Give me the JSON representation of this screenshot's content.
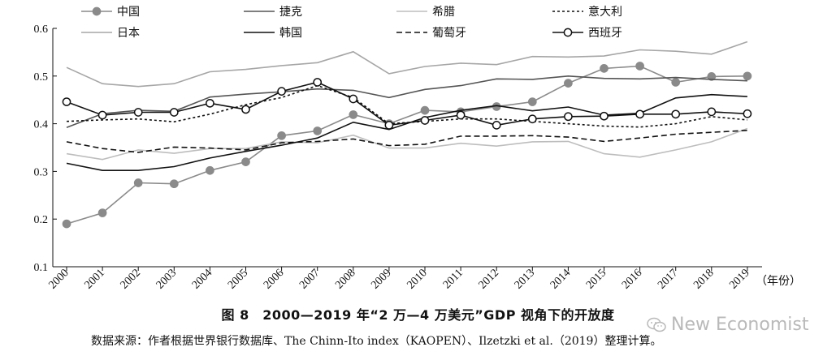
{
  "chart_data": {
    "type": "line",
    "ylim": [
      0.1,
      0.6
    ],
    "yticks": [
      "0.1",
      "0.2",
      "0.3",
      "0.4",
      "0.5",
      "0.6"
    ],
    "categories": [
      "2000",
      "2001",
      "2002",
      "2003",
      "2004",
      "2005",
      "2006",
      "2007",
      "2008",
      "2009",
      "2010",
      "2011",
      "2012",
      "2013",
      "2014",
      "2015",
      "2016",
      "2017",
      "2018",
      "2019"
    ],
    "x_unit": "（年份）",
    "title": "图 8　2000—2019 年“2 万—4 万美元”GDP 视角下的开放度",
    "legend_position": "top",
    "series": [
      {
        "name": "中国",
        "color": "#8a8a8a",
        "dash": "solid",
        "marker": "filled",
        "values": [
          0.19,
          0.213,
          0.276,
          0.274,
          0.302,
          0.32,
          0.375,
          0.385,
          0.419,
          0.4,
          0.428,
          0.425,
          0.436,
          0.446,
          0.485,
          0.516,
          0.521,
          0.487,
          0.499,
          0.5
        ]
      },
      {
        "name": "捷克",
        "color": "#555555",
        "dash": "solid",
        "marker": "none",
        "values": [
          0.392,
          0.421,
          0.428,
          0.426,
          0.456,
          0.462,
          0.467,
          0.473,
          0.47,
          0.455,
          0.472,
          0.48,
          0.494,
          0.493,
          0.5,
          0.495,
          0.494,
          0.497,
          0.493,
          0.49
        ]
      },
      {
        "name": "希腊",
        "color": "#bdbdbd",
        "dash": "solid",
        "marker": "none",
        "values": [
          0.337,
          0.325,
          0.345,
          0.338,
          0.348,
          0.348,
          0.362,
          0.36,
          0.376,
          0.349,
          0.349,
          0.359,
          0.353,
          0.362,
          0.363,
          0.337,
          0.33,
          0.345,
          0.362,
          0.39
        ]
      },
      {
        "name": "意大利",
        "color": "#111111",
        "dash": "dotted",
        "marker": "none",
        "values": [
          0.405,
          0.408,
          0.41,
          0.404,
          0.42,
          0.44,
          0.455,
          0.48,
          0.455,
          0.4,
          0.405,
          0.41,
          0.41,
          0.405,
          0.4,
          0.395,
          0.393,
          0.4,
          0.415,
          0.408
        ]
      },
      {
        "name": "日本",
        "color": "#a6a6a6",
        "dash": "solid",
        "marker": "none",
        "values": [
          0.518,
          0.484,
          0.478,
          0.484,
          0.509,
          0.514,
          0.522,
          0.528,
          0.551,
          0.505,
          0.52,
          0.527,
          0.524,
          0.541,
          0.54,
          0.542,
          0.555,
          0.552,
          0.546,
          0.572
        ]
      },
      {
        "name": "韩国",
        "color": "#111111",
        "dash": "solid",
        "marker": "none",
        "values": [
          0.317,
          0.302,
          0.302,
          0.31,
          0.328,
          0.342,
          0.355,
          0.37,
          0.403,
          0.388,
          0.413,
          0.428,
          0.438,
          0.427,
          0.435,
          0.418,
          0.422,
          0.454,
          0.461,
          0.457
        ]
      },
      {
        "name": "葡萄牙",
        "color": "#111111",
        "dash": "dashed",
        "marker": "none",
        "values": [
          0.362,
          0.348,
          0.34,
          0.351,
          0.349,
          0.345,
          0.36,
          0.363,
          0.368,
          0.354,
          0.357,
          0.374,
          0.374,
          0.375,
          0.372,
          0.363,
          0.37,
          0.378,
          0.382,
          0.386
        ]
      },
      {
        "name": "西班牙",
        "color": "#111111",
        "dash": "solid",
        "marker": "hollow",
        "values": [
          0.446,
          0.418,
          0.424,
          0.424,
          0.443,
          0.43,
          0.468,
          0.487,
          0.452,
          0.397,
          0.407,
          0.418,
          0.397,
          0.41,
          0.415,
          0.416,
          0.42,
          0.42,
          0.425,
          0.421
        ]
      }
    ]
  },
  "source_text": "数据来源：作者根据世界银行数据库、The Chinn-Ito index（KAOPEN）、Ilzetzki et al.（2019）整理计算。",
  "watermark_text": "New Economist"
}
